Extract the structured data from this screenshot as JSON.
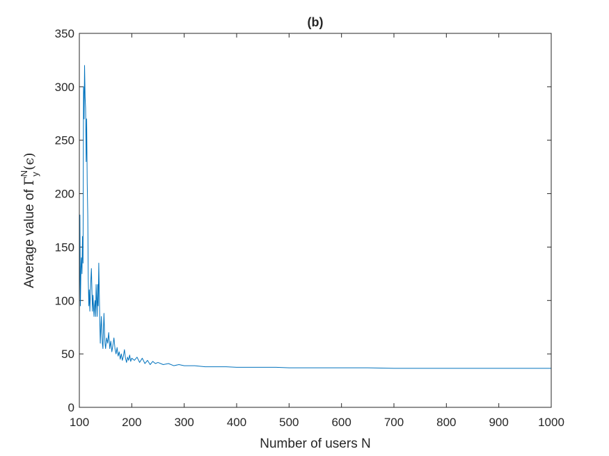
{
  "chart_data": {
    "type": "line",
    "title": "(b)",
    "xlabel": "Number of users N",
    "ylabel": {
      "prefix": "Average value of ",
      "symbol": "Γ",
      "superscript": "N",
      "subscript": "y",
      "suffix": "(ϵ)"
    },
    "xlim": [
      100,
      1000
    ],
    "ylim": [
      0,
      350
    ],
    "x_ticks": [
      100,
      200,
      300,
      400,
      500,
      600,
      700,
      800,
      900,
      1000
    ],
    "y_ticks": [
      0,
      50,
      100,
      150,
      200,
      250,
      300,
      350
    ],
    "grid": false,
    "box": true,
    "line_color": "#0072BD",
    "series": [
      {
        "points": [
          [
            100,
            85
          ],
          [
            101,
            180
          ],
          [
            102,
            95
          ],
          [
            103,
            130
          ],
          [
            104,
            140
          ],
          [
            105,
            125
          ],
          [
            106,
            160
          ],
          [
            107,
            135
          ],
          [
            108,
            300
          ],
          [
            109,
            270
          ],
          [
            110,
            320
          ],
          [
            111,
            290
          ],
          [
            112,
            280
          ],
          [
            113,
            230
          ],
          [
            114,
            270
          ],
          [
            115,
            210
          ],
          [
            116,
            180
          ],
          [
            117,
            120
          ],
          [
            118,
            95
          ],
          [
            119,
            110
          ],
          [
            120,
            90
          ],
          [
            121,
            105
          ],
          [
            122,
            120
          ],
          [
            123,
            130
          ],
          [
            124,
            110
          ],
          [
            125,
            90
          ],
          [
            126,
            105
          ],
          [
            127,
            95
          ],
          [
            128,
            85
          ],
          [
            129,
            95
          ],
          [
            130,
            100
          ],
          [
            131,
            85
          ],
          [
            132,
            115
          ],
          [
            133,
            100
          ],
          [
            134,
            85
          ],
          [
            135,
            115
          ],
          [
            136,
            95
          ],
          [
            137,
            135
          ],
          [
            138,
            110
          ],
          [
            139,
            80
          ],
          [
            140,
            60
          ],
          [
            141,
            75
          ],
          [
            142,
            85
          ],
          [
            143,
            70
          ],
          [
            144,
            60
          ],
          [
            145,
            55
          ],
          [
            146,
            75
          ],
          [
            147,
            88
          ],
          [
            148,
            70
          ],
          [
            149,
            60
          ],
          [
            150,
            55
          ],
          [
            152,
            65
          ],
          [
            154,
            60
          ],
          [
            156,
            70
          ],
          [
            158,
            55
          ],
          [
            160,
            62
          ],
          [
            162,
            52
          ],
          [
            164,
            58
          ],
          [
            166,
            65
          ],
          [
            168,
            55
          ],
          [
            170,
            50
          ],
          [
            172,
            56
          ],
          [
            174,
            48
          ],
          [
            176,
            52
          ],
          [
            178,
            45
          ],
          [
            180,
            50
          ],
          [
            182,
            44
          ],
          [
            184,
            48
          ],
          [
            186,
            54
          ],
          [
            188,
            46
          ],
          [
            190,
            42
          ],
          [
            192,
            47
          ],
          [
            194,
            44
          ],
          [
            196,
            49
          ],
          [
            198,
            43
          ],
          [
            200,
            46
          ],
          [
            205,
            44
          ],
          [
            210,
            47
          ],
          [
            215,
            42
          ],
          [
            220,
            46
          ],
          [
            225,
            41
          ],
          [
            230,
            44
          ],
          [
            235,
            40
          ],
          [
            240,
            43
          ],
          [
            245,
            41
          ],
          [
            250,
            42
          ],
          [
            260,
            40
          ],
          [
            270,
            41
          ],
          [
            280,
            39
          ],
          [
            290,
            40
          ],
          [
            300,
            39
          ],
          [
            320,
            39
          ],
          [
            340,
            38
          ],
          [
            360,
            38
          ],
          [
            380,
            38
          ],
          [
            400,
            37.5
          ],
          [
            425,
            37.5
          ],
          [
            450,
            37.5
          ],
          [
            475,
            37.5
          ],
          [
            500,
            37
          ],
          [
            550,
            37
          ],
          [
            600,
            37
          ],
          [
            650,
            37
          ],
          [
            700,
            36.5
          ],
          [
            750,
            36.5
          ],
          [
            800,
            36.5
          ],
          [
            850,
            36.5
          ],
          [
            900,
            36.5
          ],
          [
            950,
            36.5
          ],
          [
            1000,
            36.5
          ]
        ]
      }
    ]
  }
}
